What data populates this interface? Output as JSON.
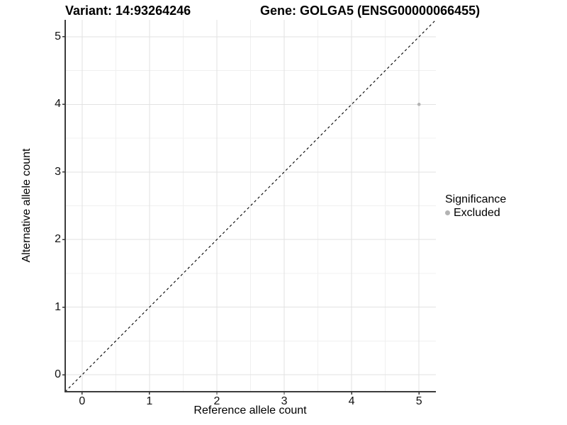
{
  "titles": {
    "variant": "Variant: 14:93264246",
    "gene": "Gene: GOLGA5 (ENSG00000066455)"
  },
  "legend": {
    "title": "Significance",
    "items": [
      {
        "label": "Excluded",
        "color": "#b3b3b3"
      }
    ]
  },
  "chart_data": {
    "type": "scatter",
    "title": "Variant: 14:93264246    Gene: GOLGA5 (ENSG00000066455)",
    "xlabel": "Reference allele count",
    "ylabel": "Alternative allele count",
    "xlim": [
      -0.25,
      5.25
    ],
    "ylim": [
      -0.25,
      5.25
    ],
    "xticks": [
      0,
      1,
      2,
      3,
      4,
      5
    ],
    "yticks": [
      0,
      1,
      2,
      3,
      4,
      5
    ],
    "minor_tick_step": 0.5,
    "grid": true,
    "legend_position": "right",
    "series": [
      {
        "name": "Excluded",
        "color": "#b3b3b3",
        "points": [
          {
            "x": 5,
            "y": 4
          }
        ]
      }
    ],
    "reference_line": {
      "type": "abline",
      "slope": 1,
      "intercept": 0,
      "linestyle": "dashed",
      "color": "#000000"
    },
    "colors": {
      "background": "#ffffff",
      "grid_major": "#e2e2e2",
      "grid_minor": "#f0f0f0",
      "axis_line": "#3c3c3c",
      "tick_mark": "#333333"
    }
  }
}
